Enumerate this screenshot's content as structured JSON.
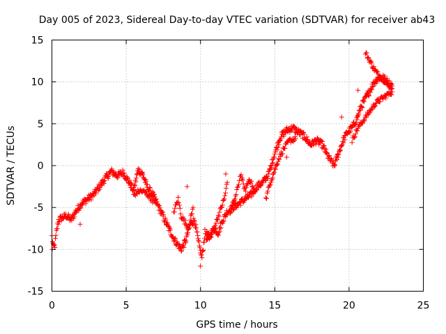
{
  "chart_data": {
    "type": "scatter",
    "title": "Day 005 of 2023, Sidereal Day-to-day VTEC variation (SDTVAR) for receiver ab43",
    "xlabel": "GPS time / hours",
    "ylabel": "SDTVAR / TECUs",
    "xlim": [
      0,
      25
    ],
    "ylim": [
      -15,
      15
    ],
    "xticks": [
      0,
      5,
      10,
      15,
      20,
      25
    ],
    "yticks": [
      -15,
      -10,
      -5,
      0,
      5,
      10,
      15
    ],
    "grid": true,
    "marker": "+",
    "color": "#ff0000",
    "series": [
      {
        "name": "SDTVAR",
        "trend": [
          [
            0.0,
            -8.5
          ],
          [
            0.1,
            -9.8
          ],
          [
            0.2,
            -9.5
          ],
          [
            0.3,
            -8.0
          ],
          [
            0.45,
            -6.5
          ],
          [
            0.7,
            -6.2
          ],
          [
            1.0,
            -6.0
          ],
          [
            1.3,
            -6.5
          ],
          [
            1.6,
            -5.5
          ],
          [
            2.0,
            -4.5
          ],
          [
            2.4,
            -4.0
          ],
          [
            2.8,
            -3.5
          ],
          [
            3.2,
            -2.5
          ],
          [
            3.6,
            -1.5
          ],
          [
            4.0,
            -0.7
          ],
          [
            4.4,
            -1.2
          ],
          [
            4.8,
            -0.8
          ],
          [
            5.2,
            -2.0
          ],
          [
            5.5,
            -3.0
          ],
          [
            5.8,
            -0.5
          ],
          [
            6.1,
            -1.0
          ],
          [
            6.4,
            -2.5
          ],
          [
            6.8,
            -3.5
          ],
          [
            7.2,
            -5.0
          ],
          [
            7.6,
            -6.5
          ],
          [
            8.0,
            -8.0
          ],
          [
            8.3,
            -9.0
          ],
          [
            8.7,
            -10.0
          ],
          [
            9.0,
            -9.0
          ],
          [
            9.3,
            -7.0
          ],
          [
            9.6,
            -6.5
          ],
          [
            9.9,
            -9.5
          ],
          [
            10.1,
            -11.0
          ],
          [
            10.3,
            -8.0
          ],
          [
            10.6,
            -8.5
          ],
          [
            10.9,
            -7.5
          ],
          [
            11.2,
            -8.0
          ],
          [
            11.5,
            -6.5
          ],
          [
            11.8,
            -5.5
          ],
          [
            12.2,
            -5.0
          ],
          [
            12.6,
            -4.5
          ],
          [
            13.0,
            -4.0
          ],
          [
            13.4,
            -3.5
          ],
          [
            13.8,
            -2.5
          ],
          [
            14.2,
            -2.0
          ],
          [
            14.6,
            -1.0
          ],
          [
            15.0,
            1.5
          ],
          [
            15.4,
            3.5
          ],
          [
            15.8,
            4.2
          ],
          [
            16.2,
            4.5
          ],
          [
            16.6,
            4.0
          ],
          [
            17.0,
            3.5
          ],
          [
            17.4,
            2.5
          ],
          [
            17.8,
            3.0
          ],
          [
            18.2,
            2.5
          ],
          [
            18.6,
            1.0
          ],
          [
            19.0,
            0.0
          ],
          [
            19.3,
            1.5
          ],
          [
            19.6,
            3.0
          ],
          [
            19.9,
            4.0
          ],
          [
            20.2,
            4.5
          ],
          [
            20.5,
            5.5
          ],
          [
            20.8,
            7.0
          ],
          [
            21.1,
            8.0
          ],
          [
            21.4,
            9.0
          ],
          [
            21.7,
            10.0
          ],
          [
            22.0,
            10.5
          ],
          [
            22.3,
            10.5
          ],
          [
            22.6,
            10.0
          ],
          [
            22.9,
            9.5
          ]
        ],
        "branches": [
          [
            [
              21.1,
              13.5
            ],
            [
              21.4,
              12.5
            ],
            [
              21.7,
              11.5
            ],
            [
              22.0,
              10.8
            ],
            [
              22.3,
              10.3
            ],
            [
              22.6,
              9.8
            ],
            [
              22.9,
              9.2
            ]
          ],
          [
            [
              20.2,
              3.0
            ],
            [
              20.6,
              4.5
            ],
            [
              21.0,
              5.5
            ],
            [
              21.4,
              6.5
            ],
            [
              21.8,
              7.5
            ],
            [
              22.2,
              8.0
            ],
            [
              22.6,
              8.5
            ],
            [
              22.9,
              8.8
            ]
          ],
          [
            [
              14.4,
              -4.0
            ],
            [
              14.7,
              -2.0
            ],
            [
              15.0,
              -0.5
            ],
            [
              15.3,
              1.0
            ],
            [
              15.6,
              2.0
            ],
            [
              16.0,
              3.0
            ],
            [
              16.4,
              3.2
            ]
          ],
          [
            [
              12.0,
              -5.5
            ],
            [
              12.4,
              -3.5
            ],
            [
              12.7,
              -1.0
            ],
            [
              13.0,
              -3.0
            ],
            [
              13.3,
              -1.5
            ],
            [
              13.6,
              -3.0
            ]
          ],
          [
            [
              10.4,
              -9.0
            ],
            [
              10.8,
              -8.0
            ],
            [
              11.2,
              -6.0
            ],
            [
              11.6,
              -4.0
            ],
            [
              11.8,
              -2.0
            ]
          ],
          [
            [
              5.5,
              -3.5
            ],
            [
              5.9,
              -3.0
            ],
            [
              6.3,
              -3.2
            ],
            [
              6.7,
              -4.0
            ],
            [
              7.0,
              -4.5
            ]
          ],
          [
            [
              8.2,
              -5.5
            ],
            [
              8.5,
              -4.0
            ],
            [
              8.7,
              -6.0
            ],
            [
              9.2,
              -7.5
            ],
            [
              9.5,
              -5.0
            ]
          ]
        ],
        "outliers": [
          [
            0.02,
            -10.0
          ],
          [
            1.9,
            -7.0
          ],
          [
            9.1,
            -2.5
          ],
          [
            10.0,
            -12.0
          ],
          [
            11.7,
            -1.0
          ],
          [
            15.8,
            1.0
          ],
          [
            19.5,
            5.8
          ],
          [
            20.6,
            9.0
          ]
        ]
      }
    ]
  }
}
